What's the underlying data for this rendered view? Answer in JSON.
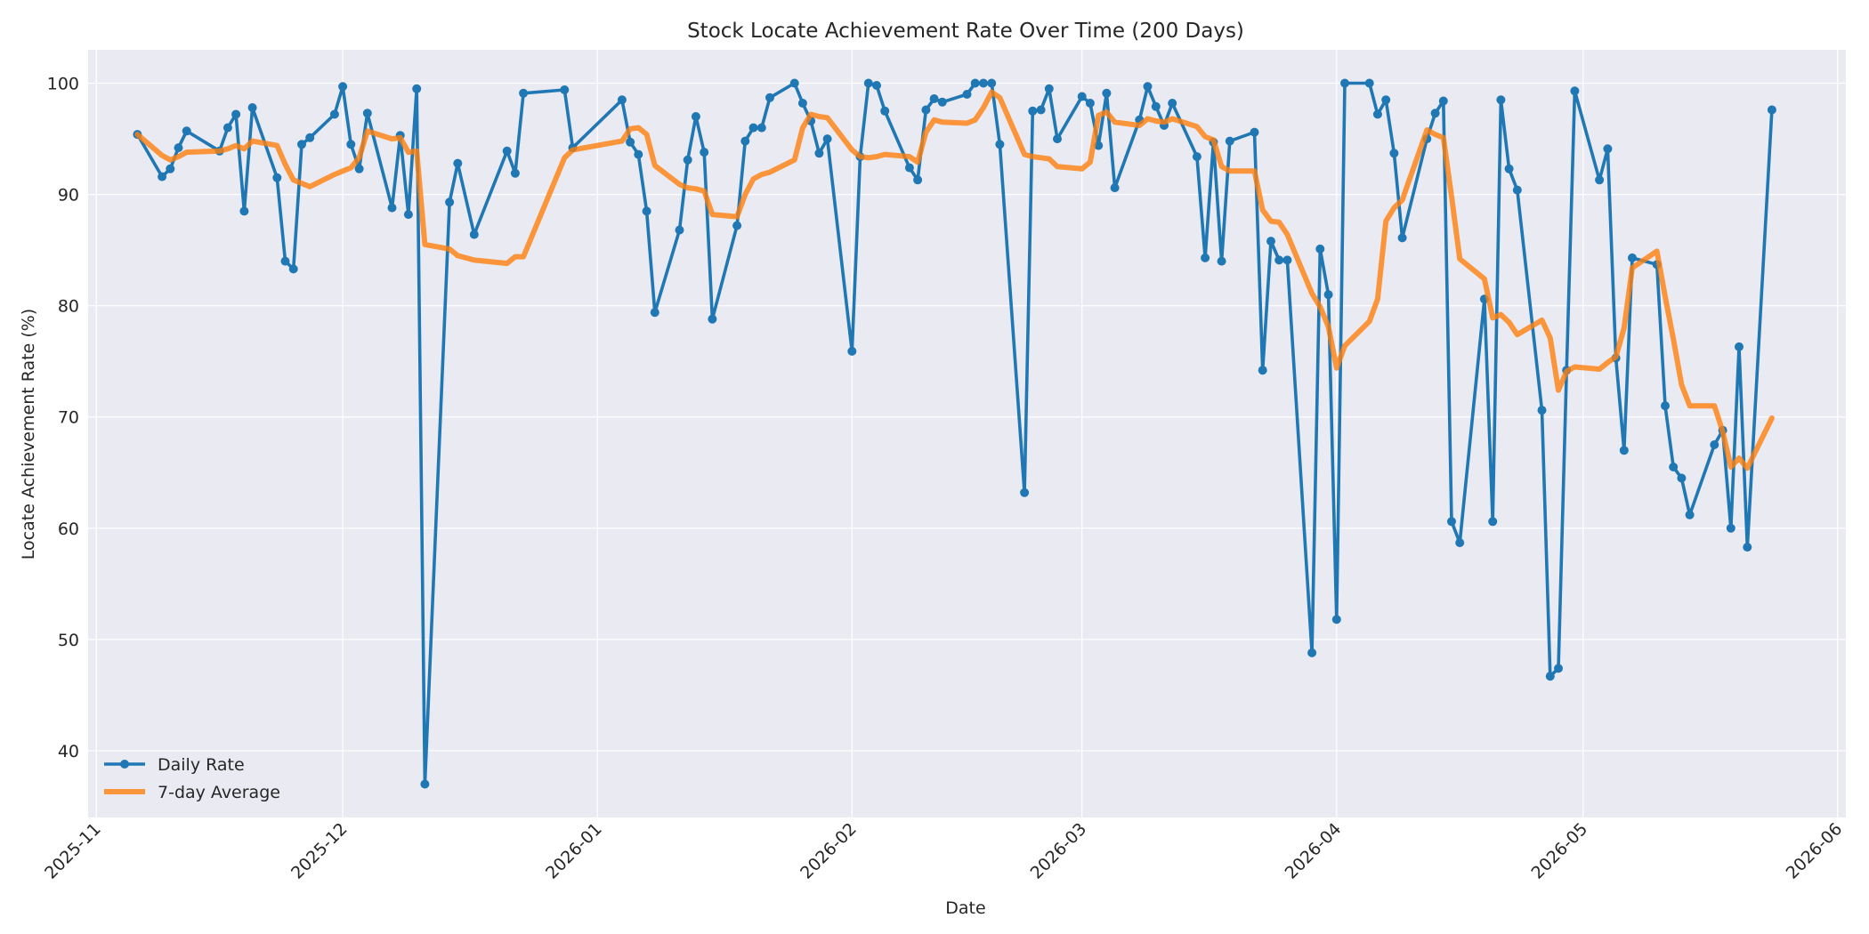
{
  "chart_data": {
    "type": "line",
    "title": "Stock Locate Achievement Rate Over Time (200 Days)",
    "xlabel": "Date",
    "ylabel": "Locate Achievement Rate (%)",
    "xlim": [
      "2025-10-31",
      "2026-06-02"
    ],
    "ylim": [
      34,
      103
    ],
    "x_ticks": [
      "2025-11",
      "2025-12",
      "2026-01",
      "2026-02",
      "2026-03",
      "2026-04",
      "2026-05",
      "2026-06"
    ],
    "y_ticks": [
      40,
      50,
      60,
      70,
      80,
      90,
      100
    ],
    "grid": true,
    "legend_position": "lower-left",
    "colors": {
      "background": "#eaeaf2",
      "daily": "#1f77b4",
      "average": "#ff7f0e"
    },
    "series": [
      {
        "name": "Daily Rate",
        "style": "line-with-markers",
        "points": [
          [
            "2025-11-06",
            95.4
          ],
          [
            "2025-11-09",
            91.6
          ],
          [
            "2025-11-10",
            92.3
          ],
          [
            "2025-11-11",
            94.2
          ],
          [
            "2025-11-12",
            95.7
          ],
          [
            "2025-11-16",
            93.9
          ],
          [
            "2025-11-17",
            96.0
          ],
          [
            "2025-11-18",
            97.2
          ],
          [
            "2025-11-19",
            88.5
          ],
          [
            "2025-11-20",
            97.8
          ],
          [
            "2025-11-23",
            91.5
          ],
          [
            "2025-11-24",
            84.0
          ],
          [
            "2025-11-25",
            83.3
          ],
          [
            "2025-11-26",
            94.5
          ],
          [
            "2025-11-27",
            95.1
          ],
          [
            "2025-11-30",
            97.2
          ],
          [
            "2025-12-01",
            99.7
          ],
          [
            "2025-12-02",
            94.5
          ],
          [
            "2025-12-03",
            92.3
          ],
          [
            "2025-12-04",
            97.3
          ],
          [
            "2025-12-07",
            88.8
          ],
          [
            "2025-12-08",
            95.3
          ],
          [
            "2025-12-09",
            88.2
          ],
          [
            "2025-12-10",
            99.5
          ],
          [
            "2025-12-11",
            37.0
          ],
          [
            "2025-12-14",
            89.3
          ],
          [
            "2025-12-15",
            92.8
          ],
          [
            "2025-12-17",
            86.4
          ],
          [
            "2025-12-21",
            93.9
          ],
          [
            "2025-12-22",
            91.9
          ],
          [
            "2025-12-23",
            99.1
          ],
          [
            "2025-12-28",
            99.4
          ],
          [
            "2025-12-29",
            94.2
          ],
          [
            "2026-01-04",
            98.5
          ],
          [
            "2026-01-05",
            94.7
          ],
          [
            "2026-01-06",
            93.6
          ],
          [
            "2026-01-07",
            88.5
          ],
          [
            "2026-01-08",
            79.4
          ],
          [
            "2026-01-11",
            86.8
          ],
          [
            "2026-01-12",
            93.1
          ],
          [
            "2026-01-13",
            97.0
          ],
          [
            "2026-01-14",
            93.8
          ],
          [
            "2026-01-15",
            78.8
          ],
          [
            "2026-01-18",
            87.2
          ],
          [
            "2026-01-19",
            94.8
          ],
          [
            "2026-01-20",
            96.0
          ],
          [
            "2026-01-21",
            96.0
          ],
          [
            "2026-01-22",
            98.7
          ],
          [
            "2026-01-25",
            100.0
          ],
          [
            "2026-01-26",
            98.2
          ],
          [
            "2026-01-27",
            96.6
          ],
          [
            "2026-01-28",
            93.7
          ],
          [
            "2026-01-29",
            95.0
          ],
          [
            "2026-02-01",
            75.9
          ],
          [
            "2026-02-02",
            93.4
          ],
          [
            "2026-02-03",
            100.0
          ],
          [
            "2026-02-04",
            99.8
          ],
          [
            "2026-02-05",
            97.5
          ],
          [
            "2026-02-08",
            92.4
          ],
          [
            "2026-02-09",
            91.3
          ],
          [
            "2026-02-10",
            97.6
          ],
          [
            "2026-02-11",
            98.6
          ],
          [
            "2026-02-12",
            98.3
          ],
          [
            "2026-02-15",
            99.0
          ],
          [
            "2026-02-16",
            100.0
          ],
          [
            "2026-02-17",
            100.0
          ],
          [
            "2026-02-18",
            100.0
          ],
          [
            "2026-02-19",
            94.5
          ],
          [
            "2026-02-22",
            63.2
          ],
          [
            "2026-02-23",
            97.5
          ],
          [
            "2026-02-24",
            97.6
          ],
          [
            "2026-02-25",
            99.5
          ],
          [
            "2026-02-26",
            95.0
          ],
          [
            "2026-03-01",
            98.8
          ],
          [
            "2026-03-02",
            98.2
          ],
          [
            "2026-03-03",
            94.4
          ],
          [
            "2026-03-04",
            99.1
          ],
          [
            "2026-03-05",
            90.6
          ],
          [
            "2026-03-08",
            96.7
          ],
          [
            "2026-03-09",
            99.7
          ],
          [
            "2026-03-10",
            97.9
          ],
          [
            "2026-03-11",
            96.2
          ],
          [
            "2026-03-12",
            98.2
          ],
          [
            "2026-03-15",
            93.4
          ],
          [
            "2026-03-16",
            84.3
          ],
          [
            "2026-03-17",
            94.7
          ],
          [
            "2026-03-18",
            84.0
          ],
          [
            "2026-03-19",
            94.8
          ],
          [
            "2026-03-22",
            95.6
          ],
          [
            "2026-03-23",
            74.2
          ],
          [
            "2026-03-24",
            85.8
          ],
          [
            "2026-03-25",
            84.1
          ],
          [
            "2026-03-26",
            84.1
          ],
          [
            "2026-03-29",
            48.8
          ],
          [
            "2026-03-30",
            85.1
          ],
          [
            "2026-03-31",
            81.0
          ],
          [
            "2026-04-01",
            51.8
          ],
          [
            "2026-04-02",
            100.0
          ],
          [
            "2026-04-05",
            100.0
          ],
          [
            "2026-04-06",
            97.2
          ],
          [
            "2026-04-07",
            98.5
          ],
          [
            "2026-04-08",
            93.7
          ],
          [
            "2026-04-09",
            86.1
          ],
          [
            "2026-04-12",
            95.0
          ],
          [
            "2026-04-13",
            97.3
          ],
          [
            "2026-04-14",
            98.4
          ],
          [
            "2026-04-15",
            60.6
          ],
          [
            "2026-04-16",
            58.7
          ],
          [
            "2026-04-19",
            80.6
          ],
          [
            "2026-04-20",
            60.6
          ],
          [
            "2026-04-21",
            98.5
          ],
          [
            "2026-04-22",
            92.3
          ],
          [
            "2026-04-23",
            90.4
          ],
          [
            "2026-04-26",
            70.6
          ],
          [
            "2026-04-27",
            46.7
          ],
          [
            "2026-04-28",
            47.4
          ],
          [
            "2026-04-29",
            74.2
          ],
          [
            "2026-04-30",
            99.3
          ],
          [
            "2026-05-03",
            91.3
          ],
          [
            "2026-05-04",
            94.1
          ],
          [
            "2026-05-05",
            75.3
          ],
          [
            "2026-05-06",
            67.0
          ],
          [
            "2026-05-07",
            84.3
          ],
          [
            "2026-05-10",
            83.7
          ],
          [
            "2026-05-11",
            71.0
          ],
          [
            "2026-05-12",
            65.5
          ],
          [
            "2026-05-13",
            64.5
          ],
          [
            "2026-05-14",
            61.2
          ],
          [
            "2026-05-17",
            67.5
          ],
          [
            "2026-05-18",
            68.8
          ],
          [
            "2026-05-19",
            60.0
          ],
          [
            "2026-05-20",
            76.3
          ],
          [
            "2026-05-21",
            58.3
          ],
          [
            "2026-05-24",
            97.6
          ]
        ]
      },
      {
        "name": "7-day Average",
        "style": "thick-line",
        "points": [
          [
            "2025-11-06",
            95.4
          ],
          [
            "2025-11-09",
            93.5
          ],
          [
            "2025-11-10",
            93.1
          ],
          [
            "2025-11-11",
            93.4
          ],
          [
            "2025-11-12",
            93.8
          ],
          [
            "2025-11-16",
            93.9
          ],
          [
            "2025-11-17",
            94.1
          ],
          [
            "2025-11-18",
            94.4
          ],
          [
            "2025-11-19",
            94.1
          ],
          [
            "2025-11-20",
            94.8
          ],
          [
            "2025-11-23",
            94.4
          ],
          [
            "2025-11-24",
            92.7
          ],
          [
            "2025-11-25",
            91.3
          ],
          [
            "2025-11-26",
            91.0
          ],
          [
            "2025-11-27",
            90.7
          ],
          [
            "2025-11-30",
            91.8
          ],
          [
            "2025-12-01",
            92.1
          ],
          [
            "2025-12-02",
            92.4
          ],
          [
            "2025-12-03",
            93.3
          ],
          [
            "2025-12-04",
            95.7
          ],
          [
            "2025-12-07",
            95.0
          ],
          [
            "2025-12-08",
            95.1
          ],
          [
            "2025-12-09",
            93.8
          ],
          [
            "2025-12-10",
            93.9
          ],
          [
            "2025-12-11",
            85.5
          ],
          [
            "2025-12-14",
            85.1
          ],
          [
            "2025-12-15",
            84.5
          ],
          [
            "2025-12-17",
            84.1
          ],
          [
            "2025-12-21",
            83.8
          ],
          [
            "2025-12-22",
            84.4
          ],
          [
            "2025-12-23",
            84.4
          ],
          [
            "2025-12-28",
            93.3
          ],
          [
            "2025-12-29",
            94.0
          ],
          [
            "2026-01-04",
            94.8
          ],
          [
            "2026-01-05",
            95.9
          ],
          [
            "2026-01-06",
            96.0
          ],
          [
            "2026-01-07",
            95.4
          ],
          [
            "2026-01-08",
            92.6
          ],
          [
            "2026-01-11",
            90.9
          ],
          [
            "2026-01-12",
            90.6
          ],
          [
            "2026-01-13",
            90.5
          ],
          [
            "2026-01-14",
            90.3
          ],
          [
            "2026-01-15",
            88.2
          ],
          [
            "2026-01-18",
            88.0
          ],
          [
            "2026-01-19",
            90.0
          ],
          [
            "2026-01-20",
            91.4
          ],
          [
            "2026-01-21",
            91.8
          ],
          [
            "2026-01-22",
            92.0
          ],
          [
            "2026-01-25",
            93.1
          ],
          [
            "2026-01-26",
            96.0
          ],
          [
            "2026-01-27",
            97.2
          ],
          [
            "2026-01-28",
            97.0
          ],
          [
            "2026-01-29",
            96.9
          ],
          [
            "2026-02-01",
            94.0
          ],
          [
            "2026-02-02",
            93.4
          ],
          [
            "2026-02-03",
            93.3
          ],
          [
            "2026-02-04",
            93.4
          ],
          [
            "2026-02-05",
            93.6
          ],
          [
            "2026-02-08",
            93.4
          ],
          [
            "2026-02-09",
            92.9
          ],
          [
            "2026-02-10",
            95.6
          ],
          [
            "2026-02-11",
            96.7
          ],
          [
            "2026-02-12",
            96.5
          ],
          [
            "2026-02-15",
            96.4
          ],
          [
            "2026-02-16",
            96.7
          ],
          [
            "2026-02-17",
            97.8
          ],
          [
            "2026-02-18",
            99.2
          ],
          [
            "2026-02-19",
            98.7
          ],
          [
            "2026-02-22",
            93.6
          ],
          [
            "2026-02-23",
            93.4
          ],
          [
            "2026-02-24",
            93.3
          ],
          [
            "2026-02-25",
            93.2
          ],
          [
            "2026-02-26",
            92.5
          ],
          [
            "2026-03-01",
            92.3
          ],
          [
            "2026-03-02",
            92.9
          ],
          [
            "2026-03-03",
            97.1
          ],
          [
            "2026-03-04",
            97.4
          ],
          [
            "2026-03-05",
            96.5
          ],
          [
            "2026-03-08",
            96.2
          ],
          [
            "2026-03-09",
            96.8
          ],
          [
            "2026-03-10",
            96.6
          ],
          [
            "2026-03-11",
            96.5
          ],
          [
            "2026-03-12",
            96.8
          ],
          [
            "2026-03-15",
            96.1
          ],
          [
            "2026-03-16",
            95.2
          ],
          [
            "2026-03-17",
            94.9
          ],
          [
            "2026-03-18",
            92.5
          ],
          [
            "2026-03-19",
            92.1
          ],
          [
            "2026-03-22",
            92.1
          ],
          [
            "2026-03-23",
            88.6
          ],
          [
            "2026-03-24",
            87.6
          ],
          [
            "2026-03-25",
            87.5
          ],
          [
            "2026-03-26",
            86.4
          ],
          [
            "2026-03-29",
            81.1
          ],
          [
            "2026-03-30",
            79.9
          ],
          [
            "2026-03-31",
            78.1
          ],
          [
            "2026-04-01",
            74.4
          ],
          [
            "2026-04-02",
            76.4
          ],
          [
            "2026-04-05",
            78.6
          ],
          [
            "2026-04-06",
            80.6
          ],
          [
            "2026-04-07",
            87.6
          ],
          [
            "2026-04-08",
            88.8
          ],
          [
            "2026-04-09",
            89.5
          ],
          [
            "2026-04-12",
            95.8
          ],
          [
            "2026-04-13",
            95.4
          ],
          [
            "2026-04-14",
            95.1
          ],
          [
            "2026-04-15",
            89.8
          ],
          [
            "2026-04-16",
            84.2
          ],
          [
            "2026-04-19",
            82.4
          ],
          [
            "2026-04-20",
            78.9
          ],
          [
            "2026-04-21",
            79.2
          ],
          [
            "2026-04-22",
            78.5
          ],
          [
            "2026-04-23",
            77.4
          ],
          [
            "2026-04-26",
            78.7
          ],
          [
            "2026-04-27",
            77.1
          ],
          [
            "2026-04-28",
            72.4
          ],
          [
            "2026-04-29",
            74.1
          ],
          [
            "2026-04-30",
            74.5
          ],
          [
            "2026-05-03",
            74.3
          ],
          [
            "2026-05-04",
            74.9
          ],
          [
            "2026-05-05",
            75.4
          ],
          [
            "2026-05-06",
            78.0
          ],
          [
            "2026-05-07",
            83.4
          ],
          [
            "2026-05-10",
            84.9
          ],
          [
            "2026-05-11",
            80.8
          ],
          [
            "2026-05-12",
            77.0
          ],
          [
            "2026-05-13",
            72.9
          ],
          [
            "2026-05-14",
            71.0
          ],
          [
            "2026-05-17",
            71.0
          ],
          [
            "2026-05-18",
            68.7
          ],
          [
            "2026-05-19",
            65.5
          ],
          [
            "2026-05-20",
            66.3
          ],
          [
            "2026-05-21",
            65.4
          ],
          [
            "2026-05-24",
            69.9
          ]
        ]
      }
    ]
  }
}
